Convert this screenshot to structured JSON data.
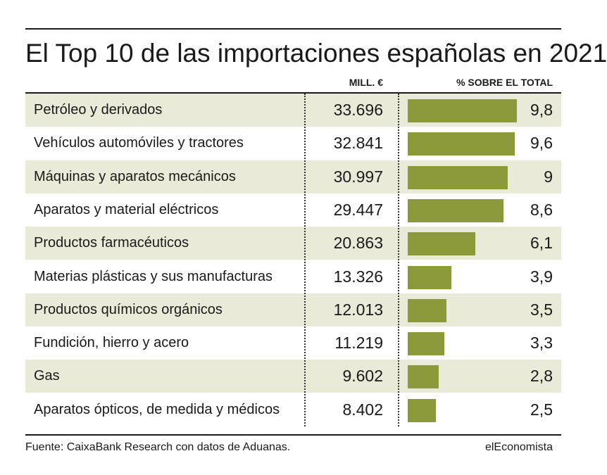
{
  "title": "El Top 10 de las importaciones españolas en 2021",
  "headers": {
    "mill": "MILL. €",
    "pct": "% SOBRE EL TOTAL"
  },
  "colors": {
    "bar": "#8d9a3b",
    "row_shade": "#e9ebd8",
    "text": "#1a1a1a"
  },
  "chart_data": {
    "type": "table",
    "title": "El Top 10 de las importaciones españolas en 2021",
    "columns": [
      "",
      "MILL. €",
      "% SOBRE EL TOTAL"
    ],
    "categories": [
      "Petróleo y derivados",
      "Vehículos automóviles y tractores",
      "Máquinas y aparatos mecánicos",
      "Aparatos y material eléctricos",
      "Productos farmacéuticos",
      "Materias plásticas y sus manufacturas",
      "Productos químicos orgánicos",
      "Fundición, hierro y acero",
      "Gas",
      "Aparatos ópticos, de medida y médicos"
    ],
    "series": [
      {
        "name": "MILL. €",
        "values": [
          "33.696",
          "32.841",
          "30.997",
          "29.447",
          "20.863",
          "13.326",
          "12.013",
          "11.219",
          "9.602",
          "8.402"
        ]
      },
      {
        "name": "% SOBRE EL TOTAL",
        "values": [
          9.8,
          9.6,
          9,
          8.6,
          6.1,
          3.9,
          3.5,
          3.3,
          2.8,
          2.5
        ],
        "labels": [
          "9,8",
          "9,6",
          "9",
          "8,6",
          "6,1",
          "3,9",
          "3,5",
          "3,3",
          "2,8",
          "2,5"
        ]
      }
    ],
    "bar_series": "% SOBRE EL TOTAL",
    "shaded_rows": "alternating starting with the first row"
  },
  "footer": {
    "source": "Fuente: CaixaBank Research con datos de Aduanas.",
    "brand": "elEconomista"
  }
}
